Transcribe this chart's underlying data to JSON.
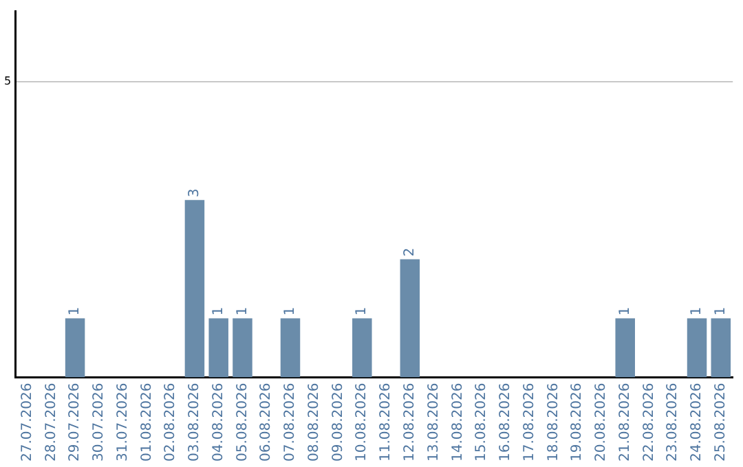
{
  "chart_data": {
    "type": "bar",
    "categories": [
      "27.07.2026",
      "28.07.2026",
      "29.07.2026",
      "30.07.2026",
      "31.07.2026",
      "01.08.2026",
      "02.08.2026",
      "03.08.2026",
      "04.08.2026",
      "05.08.2026",
      "06.08.2026",
      "07.08.2026",
      "08.08.2026",
      "09.08.2026",
      "10.08.2026",
      "11.08.2026",
      "12.08.2026",
      "13.08.2026",
      "14.08.2026",
      "15.08.2026",
      "16.08.2026",
      "17.08.2026",
      "18.08.2026",
      "19.08.2026",
      "20.08.2026",
      "21.08.2026",
      "22.08.2026",
      "23.08.2026",
      "24.08.2026",
      "25.08.2026"
    ],
    "values": [
      0,
      0,
      1,
      0,
      0,
      0,
      0,
      3,
      1,
      1,
      0,
      1,
      0,
      0,
      1,
      0,
      2,
      0,
      0,
      0,
      0,
      0,
      0,
      0,
      0,
      1,
      0,
      0,
      1,
      1
    ],
    "value_labels": [
      null,
      null,
      "1",
      null,
      null,
      null,
      null,
      "3",
      "1",
      "1",
      null,
      "1",
      null,
      null,
      "1",
      null,
      "2",
      null,
      null,
      null,
      null,
      null,
      null,
      null,
      null,
      "1",
      null,
      null,
      "1",
      "1"
    ],
    "color": "#6a8caa",
    "ylim": [
      0,
      6.2
    ],
    "yticks": [
      5
    ],
    "grid": "y",
    "legend": false
  }
}
